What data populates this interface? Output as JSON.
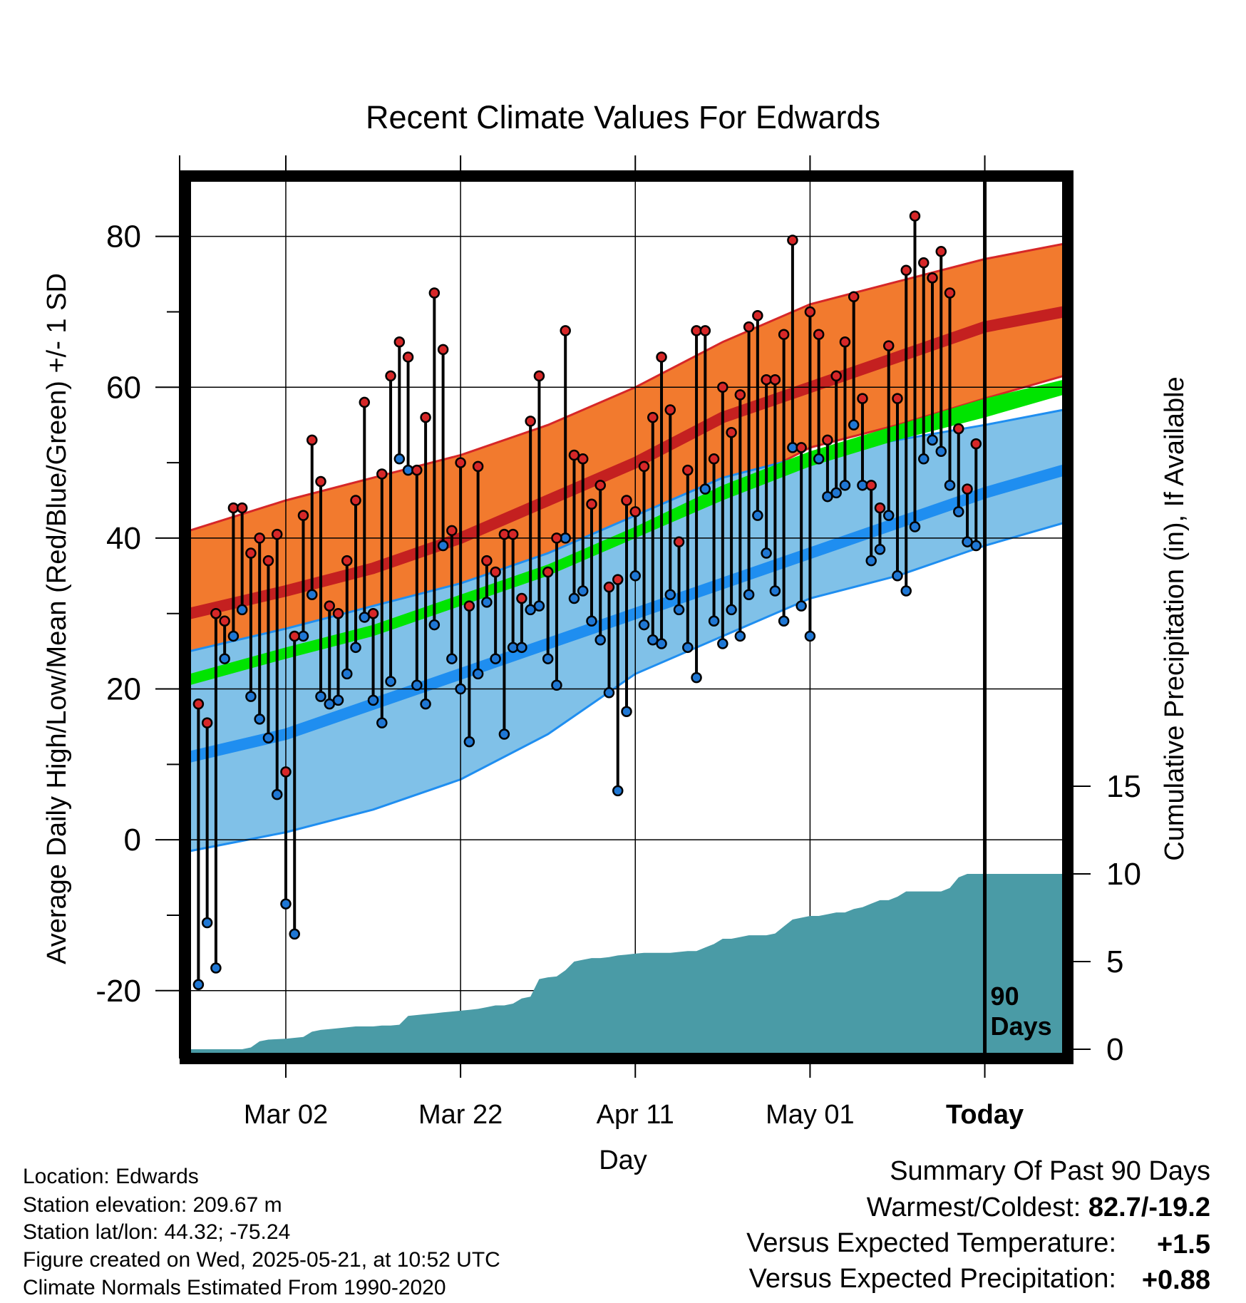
{
  "chart_data": {
    "type": "line",
    "title": "Recent Climate Values For Edwards",
    "xlabel": "Day",
    "ylabel": "Average Daily High/Low/Mean (Red/Blue/Green) +/- 1 SD",
    "y2label": "Cumulative Precipitation (in), If Available",
    "xlim": [
      -11.5,
      89.5
    ],
    "ylim": [
      -29,
      88
    ],
    "y2lim": [
      0,
      20
    ],
    "yticks": [
      -20,
      0,
      20,
      40,
      60,
      80
    ],
    "y2ticks": [
      0,
      5,
      10,
      15
    ],
    "xticks": [
      {
        "day": 0,
        "label": "Mar 02"
      },
      {
        "day": 20,
        "label": "Mar 22"
      },
      {
        "day": 40,
        "label": "Apr 11"
      },
      {
        "day": 60,
        "label": "May 01"
      },
      {
        "day": 80,
        "label": "Today",
        "bold": true
      }
    ],
    "grid": true,
    "today_marker": {
      "day": 80,
      "label_line1": "90",
      "label_line2": "Days"
    },
    "normals": {
      "days": [
        -11,
        0,
        10,
        20,
        30,
        40,
        50,
        60,
        70,
        80,
        89
      ],
      "high_mean": [
        30,
        33,
        36,
        40,
        45,
        50,
        56,
        60,
        64,
        68,
        70
      ],
      "high_upper": [
        41,
        45,
        48,
        51,
        55,
        60,
        66,
        71,
        74,
        77,
        79
      ],
      "high_lower": [
        20.5,
        24,
        27,
        31,
        35,
        40,
        46,
        52,
        55,
        58.5,
        61.5
      ],
      "low_mean": [
        11,
        14,
        18,
        22,
        26,
        30,
        34,
        38,
        42,
        46,
        49
      ],
      "low_upper": [
        25,
        28,
        31,
        34,
        38,
        43,
        48,
        51,
        53,
        55,
        57
      ],
      "low_lower": [
        -1.5,
        1,
        4,
        8,
        14,
        22,
        27,
        32,
        35,
        39,
        42
      ],
      "mean_lower": [
        20.5,
        24,
        27,
        31,
        35,
        40,
        45,
        49.5,
        53,
        56,
        59
      ],
      "mean_upper": [
        22,
        25.5,
        28.5,
        32.5,
        36.5,
        41.5,
        47,
        51.5,
        55,
        58.5,
        61
      ]
    },
    "series": [
      {
        "name": "Daily High",
        "color": "#d62728",
        "x": [
          -10,
          -9,
          -8,
          -7,
          -6,
          -5,
          -4,
          -3,
          -2,
          -1,
          0,
          1,
          2,
          3,
          4,
          5,
          6,
          7,
          8,
          9,
          10,
          11,
          12,
          13,
          14,
          15,
          16,
          17,
          18,
          19,
          20,
          21,
          22,
          23,
          24,
          25,
          26,
          27,
          28,
          29,
          30,
          31,
          32,
          33,
          34,
          35,
          36,
          37,
          38,
          39,
          40,
          41,
          42,
          43,
          44,
          45,
          46,
          47,
          48,
          49,
          50,
          51,
          52,
          53,
          54,
          55,
          56,
          57,
          58,
          59,
          60,
          61,
          62,
          63,
          64,
          65,
          66,
          67,
          68,
          69,
          70,
          71,
          72,
          73,
          74,
          75,
          76,
          77,
          78,
          79
        ],
        "values": [
          18,
          15.5,
          30,
          29,
          44,
          44,
          38,
          40,
          37,
          40.5,
          9,
          27,
          43,
          53,
          47.5,
          31,
          30,
          37,
          45,
          58,
          30,
          48.5,
          61.5,
          66,
          64,
          49,
          56,
          72.5,
          65,
          41,
          50,
          31,
          49.5,
          37,
          35.5,
          40.5,
          40.5,
          32,
          55.5,
          61.5,
          35.5,
          40,
          67.5,
          51,
          50.5,
          44.5,
          47,
          33.5,
          34.5,
          45,
          43.5,
          49.5,
          56,
          64,
          57,
          39.5,
          49,
          67.5,
          67.5,
          50.5,
          60,
          54,
          59,
          68,
          69.5,
          61,
          61,
          67,
          79.5,
          52,
          70,
          67,
          53,
          61.5,
          66,
          72,
          58.5,
          47,
          44,
          65.5,
          58.5,
          75.5,
          82.7,
          76.5,
          74.5,
          78,
          72.5,
          54.5,
          46.5,
          52.5
        ]
      },
      {
        "name": "Daily Low",
        "color": "#1f77d4",
        "x": [
          -10,
          -9,
          -8,
          -7,
          -6,
          -5,
          -4,
          -3,
          -2,
          -1,
          0,
          1,
          2,
          3,
          4,
          5,
          6,
          7,
          8,
          9,
          10,
          11,
          12,
          13,
          14,
          15,
          16,
          17,
          18,
          19,
          20,
          21,
          22,
          23,
          24,
          25,
          26,
          27,
          28,
          29,
          30,
          31,
          32,
          33,
          34,
          35,
          36,
          37,
          38,
          39,
          40,
          41,
          42,
          43,
          44,
          45,
          46,
          47,
          48,
          49,
          50,
          51,
          52,
          53,
          54,
          55,
          56,
          57,
          58,
          59,
          60,
          61,
          62,
          63,
          64,
          65,
          66,
          67,
          68,
          69,
          70,
          71,
          72,
          73,
          74,
          75,
          76,
          77,
          78,
          79
        ],
        "values": [
          -19.2,
          -11,
          -17,
          24,
          27,
          30.5,
          19,
          16,
          13.5,
          6,
          -8.5,
          -12.5,
          27,
          32.5,
          19,
          18,
          18.5,
          22,
          25.5,
          29.5,
          18.5,
          15.5,
          21,
          50.5,
          49,
          20.5,
          18,
          28.5,
          39,
          24,
          20,
          13,
          22,
          31.5,
          24,
          14,
          25.5,
          25.5,
          30.5,
          31,
          24,
          20.5,
          40,
          32,
          33,
          29,
          26.5,
          19.5,
          6.5,
          17,
          35,
          28.5,
          26.5,
          26,
          32.5,
          30.5,
          25.5,
          21.5,
          46.5,
          29,
          26,
          30.5,
          27,
          32.5,
          43,
          38,
          33,
          29,
          52,
          31,
          27,
          50.5,
          45.5,
          46,
          47,
          55,
          47,
          37,
          38.5,
          43,
          35,
          33,
          41.5,
          50.5,
          53,
          51.5,
          47,
          43.5,
          39.5,
          39
        ]
      }
    ],
    "precip_cumulative": {
      "days": [
        -11,
        -5,
        -4,
        -3,
        -2,
        0,
        1,
        2,
        3,
        4,
        5,
        6,
        7,
        8,
        9,
        10,
        11,
        12,
        13,
        14,
        15,
        16,
        17,
        18,
        19,
        20,
        21,
        22,
        23,
        24,
        25,
        26,
        27,
        28,
        29,
        30,
        31,
        32,
        33,
        34,
        35,
        36,
        37,
        38,
        39,
        40,
        41,
        42,
        43,
        44,
        45,
        46,
        47,
        48,
        49,
        50,
        51,
        52,
        53,
        54,
        55,
        56,
        57,
        58,
        59,
        60,
        61,
        62,
        63,
        64,
        65,
        66,
        67,
        68,
        69,
        70,
        71,
        72,
        73,
        74,
        75,
        76,
        77,
        78,
        79,
        80,
        89
      ],
      "values": [
        0,
        0,
        0.1,
        0.45,
        0.55,
        0.6,
        0.65,
        0.7,
        1.0,
        1.1,
        1.15,
        1.2,
        1.25,
        1.3,
        1.3,
        1.3,
        1.35,
        1.35,
        1.4,
        1.9,
        1.95,
        2.0,
        2.05,
        2.1,
        2.15,
        2.2,
        2.25,
        2.3,
        2.4,
        2.5,
        2.5,
        2.6,
        2.9,
        3.0,
        4.0,
        4.1,
        4.15,
        4.5,
        5.0,
        5.1,
        5.2,
        5.2,
        5.25,
        5.35,
        5.4,
        5.45,
        5.5,
        5.5,
        5.5,
        5.5,
        5.55,
        5.6,
        5.6,
        5.8,
        6.0,
        6.3,
        6.3,
        6.4,
        6.5,
        6.5,
        6.5,
        6.6,
        7.0,
        7.4,
        7.5,
        7.6,
        7.6,
        7.7,
        7.8,
        7.8,
        8.0,
        8.1,
        8.3,
        8.5,
        8.5,
        8.7,
        9.0,
        9.0,
        9.0,
        9.0,
        9.0,
        9.2,
        9.8,
        10.0,
        10.0,
        10.0,
        10.0
      ]
    }
  },
  "footer_left": {
    "line1": "Location: Edwards",
    "line2": "Station elevation: 209.67 m",
    "line3": "Station lat/lon: 44.32; -75.24",
    "line4": "Figure created on Wed, 2025-05-21, at 10:52 UTC",
    "line5": "Climate Normals Estimated From 1990-2020"
  },
  "summary": {
    "title": "Summary Of Past 90 Days",
    "warmest_label": "Warmest/Coldest: ",
    "warmest_value": "82.7/-19.2",
    "temp_label": "Versus Expected Temperature:",
    "temp_value": "+1.5",
    "temp_color": "#d62728",
    "precip_label": "Versus Expected Precipitation:",
    "precip_value": "+0.88",
    "precip_color": "#22dd22"
  },
  "colors": {
    "high_band": "#f27a2e",
    "high_mean": "#c42020",
    "low_band": "#80c1e8",
    "low_mean": "#1f8ef0",
    "mean_band": "#00e400",
    "precip": "#4a9ba6"
  }
}
